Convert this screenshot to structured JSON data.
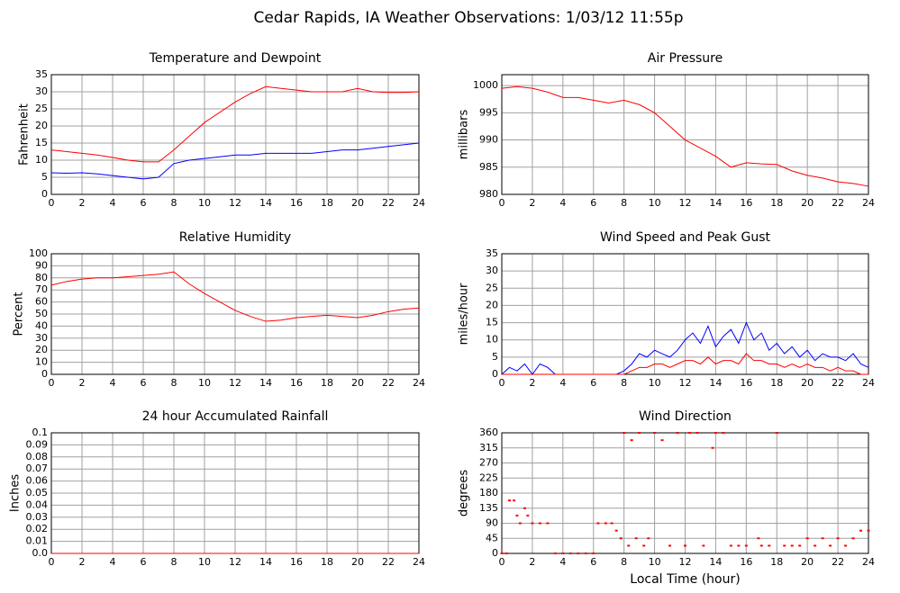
{
  "title": "Cedar Rapids, IA Weather Observations: 1/03/12 11:55p",
  "chart_data": [
    {
      "type": "line",
      "title": "Temperature and Dewpoint",
      "y_label": "Fahrenheit",
      "x": [
        0,
        1,
        2,
        3,
        4,
        5,
        6,
        7,
        8,
        9,
        10,
        11,
        12,
        13,
        14,
        15,
        16,
        17,
        18,
        19,
        20,
        21,
        22,
        23,
        24
      ],
      "series": [
        {
          "color": "#ff0000",
          "values": [
            13,
            12.5,
            12,
            11.5,
            10.8,
            10,
            9.5,
            9.5,
            13,
            17,
            21,
            24,
            27,
            29.5,
            31.5,
            31,
            30.5,
            30,
            30,
            30,
            31,
            30,
            29.8,
            29.8,
            30
          ]
        },
        {
          "color": "#0000ff",
          "values": [
            6.3,
            6.2,
            6.3,
            6,
            5.5,
            5,
            4.5,
            5,
            9,
            10,
            10.5,
            11,
            11.5,
            11.5,
            12,
            12,
            12,
            12,
            12.5,
            13,
            13,
            13.5,
            14,
            14.5,
            15
          ]
        }
      ],
      "xlim": [
        0,
        24
      ],
      "xticks": [
        0,
        2,
        4,
        6,
        8,
        10,
        12,
        14,
        16,
        18,
        20,
        22,
        24
      ],
      "ylim": [
        0,
        35
      ],
      "yticks": [
        0,
        5,
        10,
        15,
        20,
        25,
        30,
        35
      ],
      "grid": true
    },
    {
      "type": "line",
      "title": "Air Pressure",
      "y_label": "millibars",
      "x": [
        0,
        1,
        2,
        3,
        4,
        5,
        6,
        7,
        8,
        9,
        10,
        11,
        12,
        13,
        14,
        15,
        16,
        17,
        18,
        19,
        20,
        21,
        22,
        23,
        24
      ],
      "series": [
        {
          "color": "#ff0000",
          "values": [
            999.5,
            999.8,
            999.5,
            998.8,
            997.8,
            997.8,
            997.3,
            996.8,
            997.3,
            996.5,
            995,
            992.5,
            990,
            988.5,
            987,
            985,
            985.8,
            985.6,
            985.5,
            984.3,
            983.5,
            983,
            982.3,
            982,
            981.5
          ]
        }
      ],
      "xlim": [
        0,
        24
      ],
      "xticks": [
        0,
        2,
        4,
        6,
        8,
        10,
        12,
        14,
        16,
        18,
        20,
        22,
        24
      ],
      "ylim": [
        980,
        1002
      ],
      "yticks": [
        980,
        985,
        990,
        995,
        1000
      ],
      "grid": true
    },
    {
      "type": "line",
      "title": "Relative Humidity",
      "y_label": "Percent",
      "x": [
        0,
        1,
        2,
        3,
        4,
        5,
        6,
        7,
        8,
        9,
        10,
        11,
        12,
        13,
        14,
        15,
        16,
        17,
        18,
        19,
        20,
        21,
        22,
        23,
        24
      ],
      "series": [
        {
          "color": "#ff0000",
          "values": [
            74,
            77,
            79,
            80,
            80,
            81,
            82,
            83,
            85,
            75,
            67,
            60,
            53,
            48,
            44,
            45,
            47,
            48,
            49,
            48,
            47,
            49,
            52,
            54,
            55
          ]
        }
      ],
      "xlim": [
        0,
        24
      ],
      "xticks": [
        0,
        2,
        4,
        6,
        8,
        10,
        12,
        14,
        16,
        18,
        20,
        22,
        24
      ],
      "ylim": [
        0,
        100
      ],
      "yticks": [
        0,
        10,
        20,
        30,
        40,
        50,
        60,
        70,
        80,
        90,
        100
      ],
      "grid": true
    },
    {
      "type": "line",
      "title": "Wind Speed and Peak Gust",
      "y_label": "miles/hour",
      "x": [
        0,
        0.5,
        1,
        1.5,
        2,
        2.5,
        3,
        3.5,
        4,
        4.5,
        5,
        5.5,
        6,
        6.5,
        7,
        7.5,
        8,
        8.5,
        9,
        9.5,
        10,
        10.5,
        11,
        11.5,
        12,
        12.5,
        13,
        13.5,
        14,
        14.5,
        15,
        15.5,
        16,
        16.5,
        17,
        17.5,
        18,
        18.5,
        19,
        19.5,
        20,
        20.5,
        21,
        21.5,
        22,
        22.5,
        23,
        23.5,
        24
      ],
      "series": [
        {
          "color": "#0000ff",
          "values": [
            0,
            2,
            1,
            3,
            0,
            3,
            2,
            0,
            0,
            0,
            0,
            0,
            0,
            0,
            0,
            0,
            1,
            3,
            6,
            5,
            7,
            6,
            5,
            7,
            10,
            12,
            9,
            14,
            8,
            11,
            13,
            9,
            15,
            10,
            12,
            7,
            9,
            6,
            8,
            5,
            7,
            4,
            6,
            5,
            5,
            4,
            6,
            3,
            2
          ]
        },
        {
          "color": "#ff0000",
          "values": [
            0,
            0,
            0,
            0,
            0,
            0,
            0,
            0,
            0,
            0,
            0,
            0,
            0,
            0,
            0,
            0,
            0,
            1,
            2,
            2,
            3,
            3,
            2,
            3,
            4,
            4,
            3,
            5,
            3,
            4,
            4,
            3,
            6,
            4,
            4,
            3,
            3,
            2,
            3,
            2,
            3,
            2,
            2,
            1,
            2,
            1,
            1,
            0,
            0
          ]
        }
      ],
      "xlim": [
        0,
        24
      ],
      "xticks": [
        0,
        2,
        4,
        6,
        8,
        10,
        12,
        14,
        16,
        18,
        20,
        22,
        24
      ],
      "ylim": [
        0,
        35
      ],
      "yticks": [
        0,
        5,
        10,
        15,
        20,
        25,
        30,
        35
      ],
      "grid": true
    },
    {
      "type": "line",
      "title": "24 hour Accumulated Rainfall",
      "y_label": "Inches",
      "x": [
        0,
        24
      ],
      "series": [
        {
          "color": "#ff0000",
          "values": [
            0,
            0
          ]
        }
      ],
      "xlim": [
        0,
        24
      ],
      "xticks": [
        0,
        2,
        4,
        6,
        8,
        10,
        12,
        14,
        16,
        18,
        20,
        22,
        24
      ],
      "ylim": [
        0,
        0.1
      ],
      "yticks": [
        {
          "value": 0,
          "label": "0.0"
        },
        0.01,
        0.02,
        0.03,
        0.04,
        0.05,
        0.06,
        0.07,
        0.08,
        0.09,
        0.1
      ],
      "grid": true
    },
    {
      "type": "scatter",
      "title": "Wind Direction",
      "y_label": "degrees",
      "x_label": "Local Time (hour)",
      "x": [
        0,
        0.3,
        0.5,
        0.8,
        1,
        1.2,
        1.5,
        1.7,
        2,
        2.5,
        3,
        3.5,
        4,
        4.5,
        5,
        5.5,
        6,
        6.3,
        6.8,
        7.2,
        7.5,
        7.8,
        8,
        8.3,
        8.5,
        8.8,
        9,
        9.3,
        9.6,
        10,
        10.5,
        11,
        11.5,
        12,
        12.3,
        12.8,
        13.2,
        13.8,
        14,
        14.5,
        15,
        15.5,
        16,
        16.8,
        17,
        17.5,
        18,
        18.5,
        19,
        19.5,
        20,
        20.5,
        21,
        21.5,
        22,
        22.5,
        23,
        23.5,
        24
      ],
      "series": [
        {
          "color": "#ff0000",
          "values": [
            0,
            0,
            158,
            158,
            113,
            90,
            135,
            113,
            90,
            90,
            90,
            0,
            0,
            0,
            0,
            0,
            0,
            90,
            90,
            90,
            68,
            45,
            360,
            23,
            338,
            45,
            360,
            23,
            45,
            360,
            338,
            23,
            360,
            23,
            360,
            360,
            23,
            315,
            360,
            360,
            23,
            23,
            23,
            45,
            23,
            23,
            360,
            23,
            23,
            23,
            45,
            23,
            45,
            23,
            45,
            23,
            45,
            68,
            68
          ]
        }
      ],
      "xlim": [
        0,
        24
      ],
      "xticks": [
        0,
        2,
        4,
        6,
        8,
        10,
        12,
        14,
        16,
        18,
        20,
        22,
        24
      ],
      "ylim": [
        0,
        360
      ],
      "yticks": [
        0,
        45,
        90,
        135,
        180,
        225,
        270,
        315,
        360
      ],
      "grid": true
    }
  ]
}
